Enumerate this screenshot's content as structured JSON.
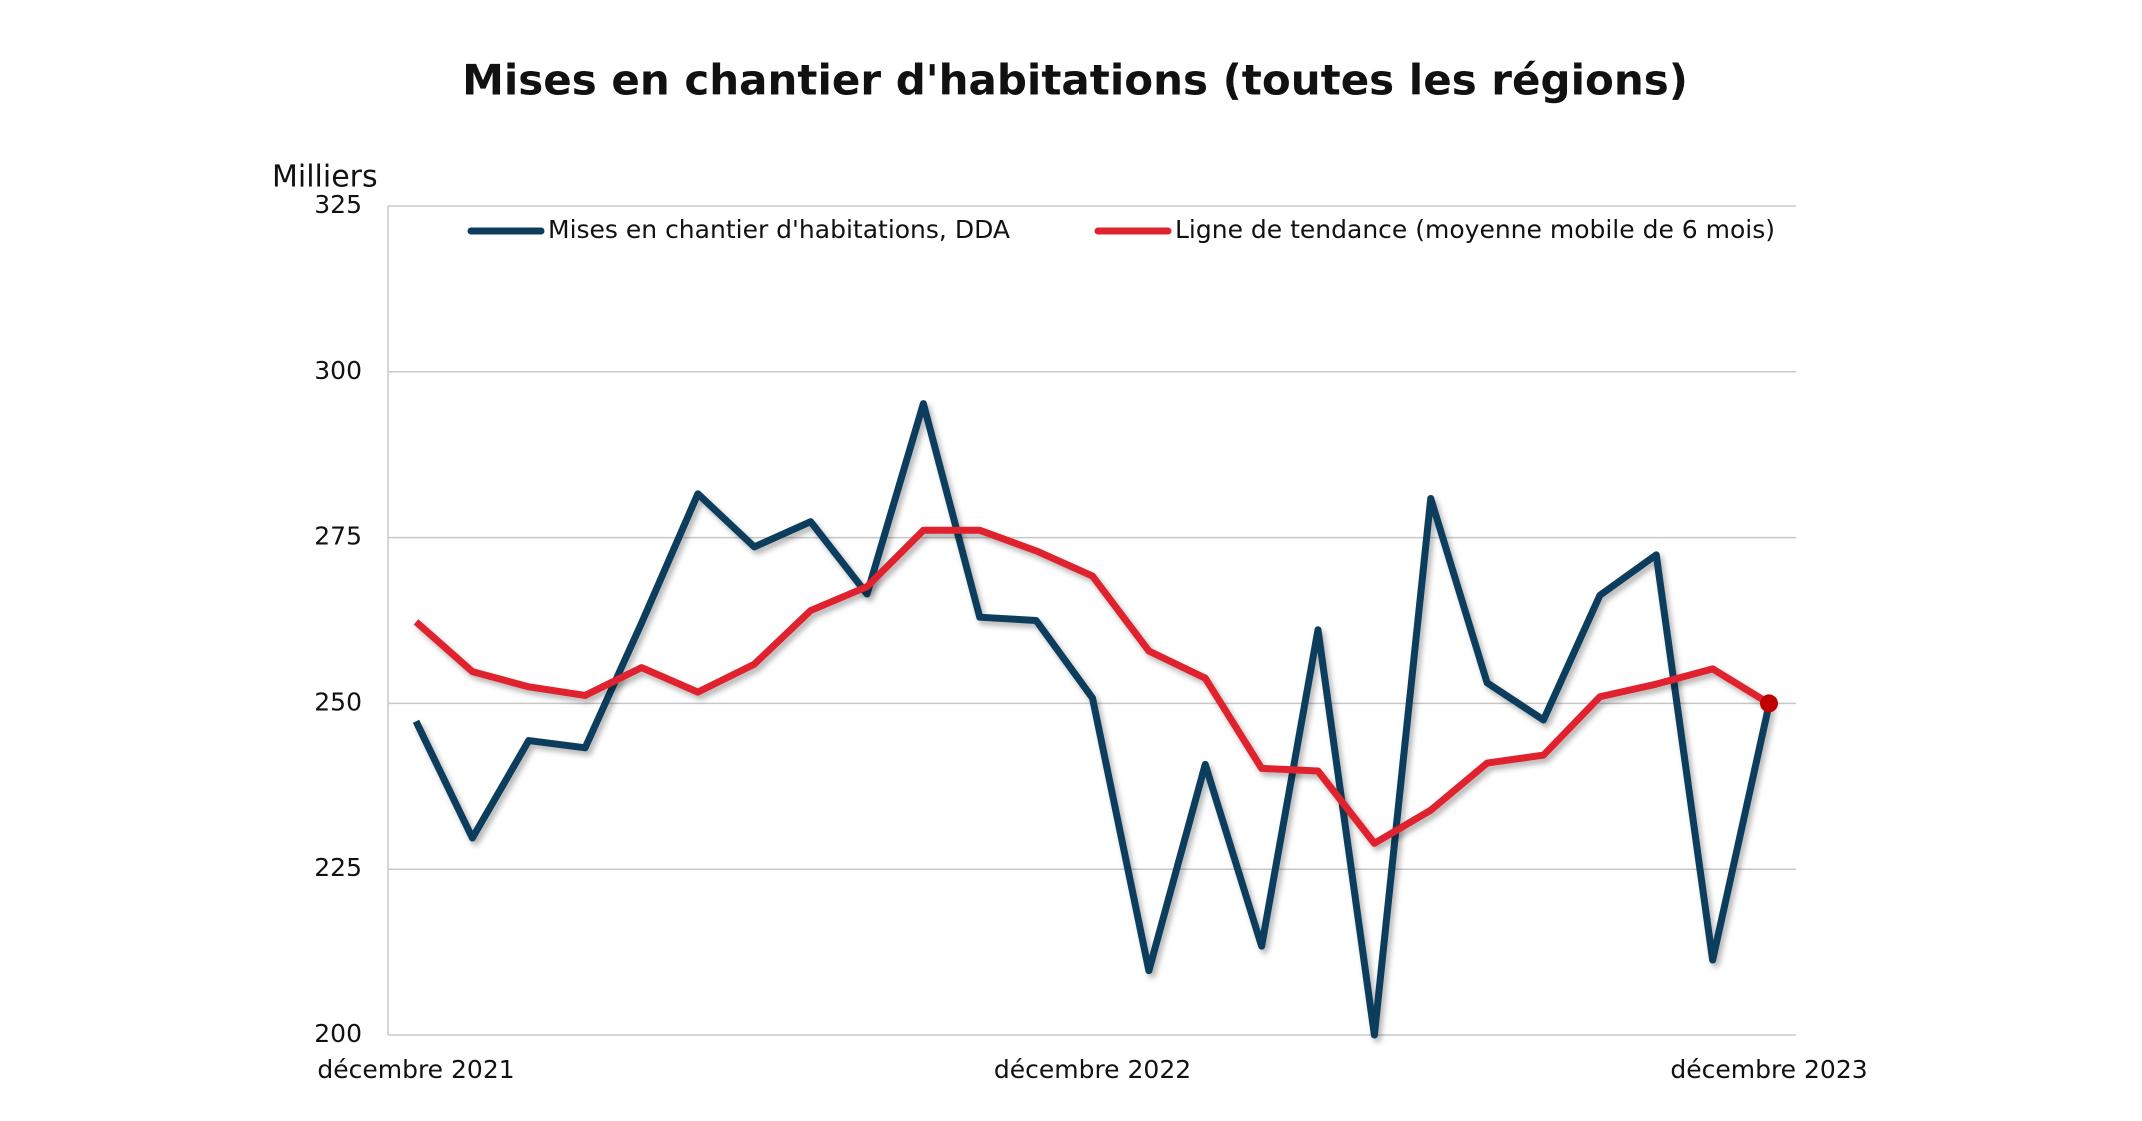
{
  "chart_data": {
    "type": "line",
    "title": "Mises en chantier d'habitations (toutes les régions)",
    "y_label": "Milliers",
    "categories": [
      "décembre 2021",
      null,
      null,
      null,
      null,
      null,
      null,
      null,
      null,
      null,
      null,
      null,
      "décembre 2022",
      null,
      null,
      null,
      null,
      null,
      null,
      null,
      null,
      null,
      null,
      null,
      "décembre 2023"
    ],
    "series": [
      {
        "name": "Mises en chantier d'habitations, DDA",
        "color": "#0e3d5c",
        "values": [
          247.3,
          229.7,
          244.4,
          243.3,
          262.1,
          281.6,
          273.6,
          277.4,
          266.5,
          295.2,
          263.0,
          262.5,
          250.8,
          209.7,
          240.8,
          213.4,
          261.1,
          200,
          280.9,
          253.1,
          247.5,
          266.3,
          272.4,
          211.3,
          249.8
        ]
      },
      {
        "name": "Ligne de tendance (moyenne mobile de 6 mois)",
        "color": "#e0242f",
        "values": [
          262.3,
          254.8,
          252.5,
          251.2,
          255.4,
          251.7,
          255.9,
          264.0,
          267.6,
          276.1,
          276.1,
          273.0,
          269.2,
          257.9,
          253.8,
          240.2,
          239.8,
          228.9,
          233.9,
          241.0,
          242.2,
          251.0,
          252.9,
          255.2,
          250.0
        ]
      }
    ],
    "ylim": [
      200,
      325
    ],
    "yticks": [
      200,
      225,
      250,
      275,
      300,
      325
    ],
    "grid": true,
    "legend": "top"
  }
}
